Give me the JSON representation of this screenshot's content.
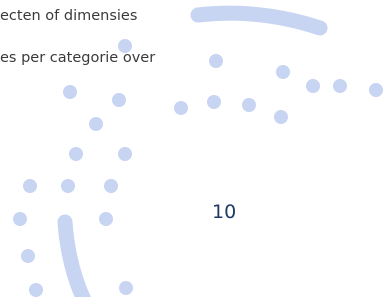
{
  "text_lines": [
    "ecten of dimensies",
    "es per categorie over"
  ],
  "number_label": "10"
}
